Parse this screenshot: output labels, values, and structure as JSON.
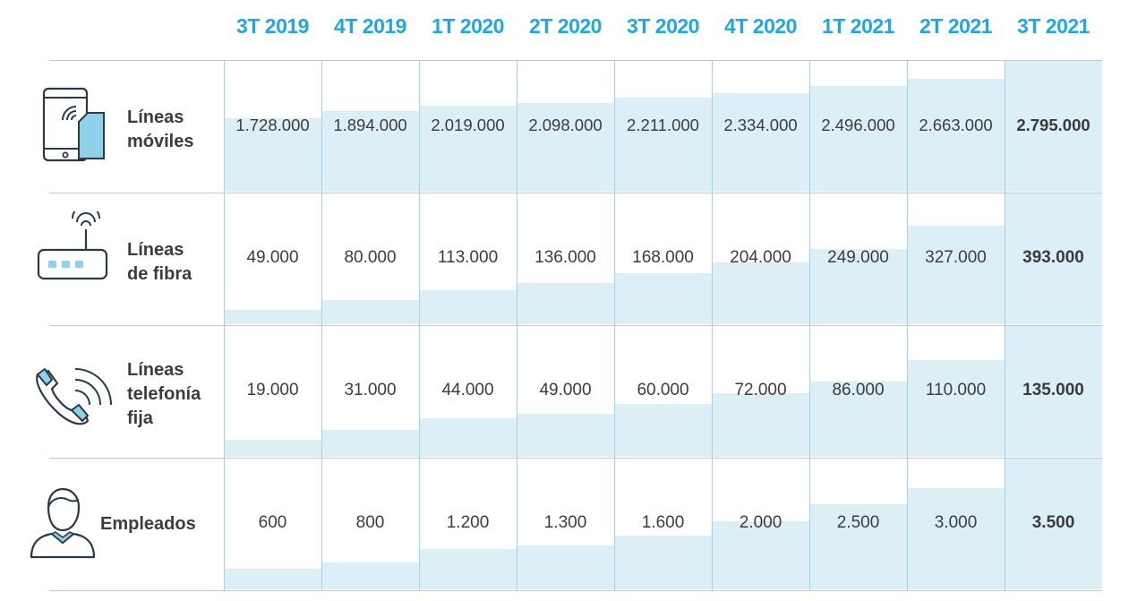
{
  "chart_data": {
    "type": "table",
    "columns": [
      "3T 2019",
      "4T 2019",
      "1T 2020",
      "2T 2020",
      "3T 2020",
      "4T 2020",
      "1T 2021",
      "2T 2021",
      "3T 2021"
    ],
    "rows": [
      {
        "label_lines": [
          "Líneas",
          "móviles"
        ],
        "icon": "smartphone-sim-icon",
        "values": [
          1728000,
          1894000,
          2019000,
          2098000,
          2211000,
          2334000,
          2496000,
          2663000,
          2795000
        ],
        "labels": [
          "1.728.000",
          "1.894.000",
          "2.019.000",
          "2.098.000",
          "2.211.000",
          "2.334.000",
          "2.496.000",
          "2.663.000",
          "2.795.000"
        ]
      },
      {
        "label_lines": [
          "Líneas",
          "de fibra"
        ],
        "icon": "fiber-router-icon",
        "values": [
          49000,
          80000,
          113000,
          136000,
          168000,
          204000,
          249000,
          327000,
          393000
        ],
        "labels": [
          "49.000",
          "80.000",
          "113.000",
          "136.000",
          "168.000",
          "204.000",
          "249.000",
          "327.000",
          "393.000"
        ]
      },
      {
        "label_lines": [
          "Líneas",
          "telefonía",
          "fija"
        ],
        "icon": "phone-handset-icon",
        "values": [
          19000,
          31000,
          44000,
          49000,
          60000,
          72000,
          86000,
          110000,
          135000
        ],
        "labels": [
          "19.000",
          "31.000",
          "44.000",
          "49.000",
          "60.000",
          "72.000",
          "86.000",
          "110.000",
          "135.000"
        ]
      },
      {
        "label_lines": [
          "Empleados"
        ],
        "icon": "employee-person-icon",
        "values": [
          600,
          800,
          1200,
          1300,
          1600,
          2000,
          2500,
          3000,
          3500
        ],
        "labels": [
          "600",
          "800",
          "1.200",
          "1.300",
          "1.600",
          "2.000",
          "2.500",
          "3.000",
          "3.500"
        ]
      }
    ],
    "highlight_last_column": true
  },
  "colors": {
    "header_text": "#1fa8e0",
    "bar_fill": "#dceff7",
    "grid_line": "#9fd3e8",
    "value_text": "#3c3c3c",
    "icon_stroke": "#2b3a46",
    "icon_accent": "#8fd0ea"
  }
}
